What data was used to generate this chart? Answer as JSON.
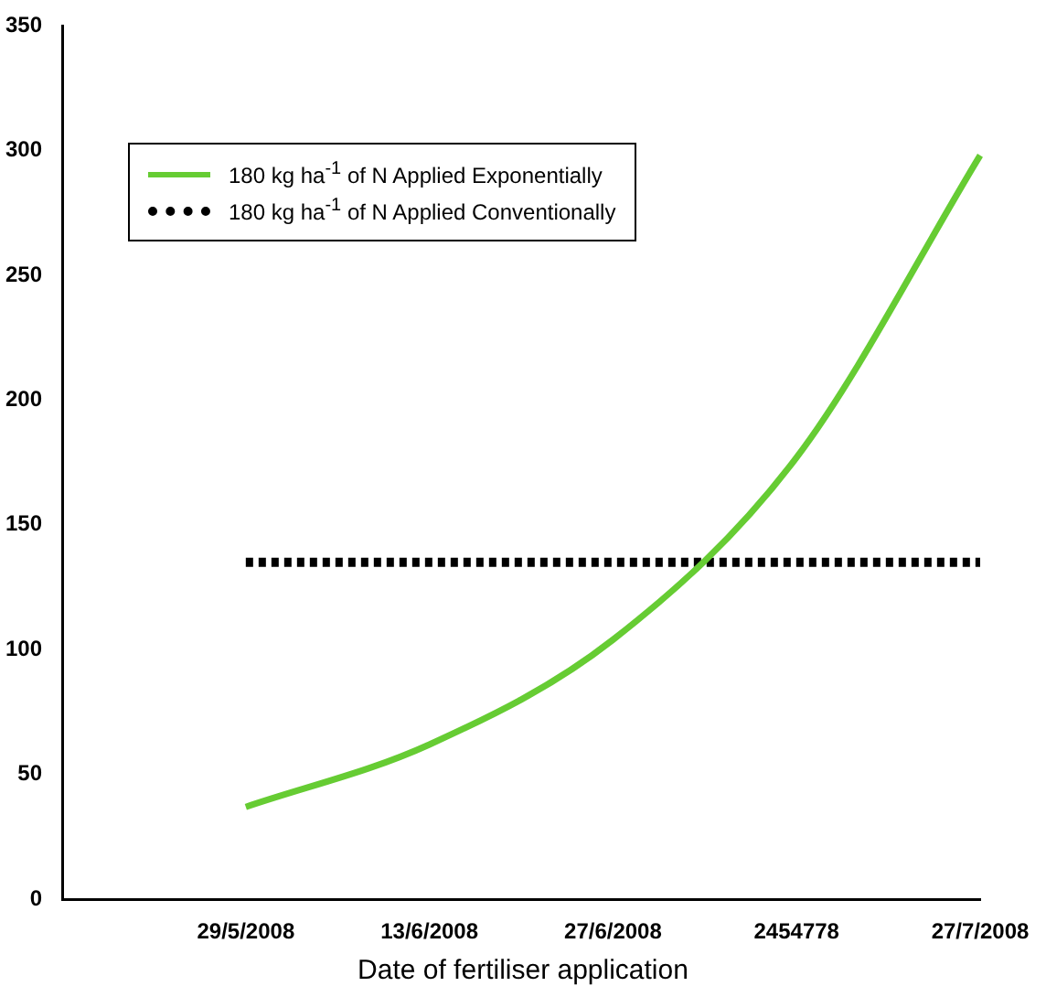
{
  "chart_data": {
    "type": "line",
    "xlabel": "Date of fertiliser application",
    "categories": [
      null,
      "29/5/2008",
      "13/6/2008",
      "27/6/2008",
      "2454778",
      "27/7/2008"
    ],
    "series": [
      {
        "name": "180 kg ha$^{-1}$ of N Applied Exponentially",
        "color": "#66cc33",
        "values": [
          null,
          37,
          62,
          104,
          177,
          298
        ],
        "line_style": "solid"
      },
      {
        "name": "180 kg ha$^{-1}$ of N Applied Conventionally",
        "color": "#000000",
        "values": [
          null,
          135,
          135,
          135,
          135,
          135
        ],
        "line_style": "dotted"
      }
    ],
    "ylim": [
      0,
      350
    ],
    "yticks": [
      0,
      50,
      100,
      150,
      200,
      250,
      300,
      350
    ],
    "grid": false,
    "legend": "top left",
    "marker": "none"
  }
}
